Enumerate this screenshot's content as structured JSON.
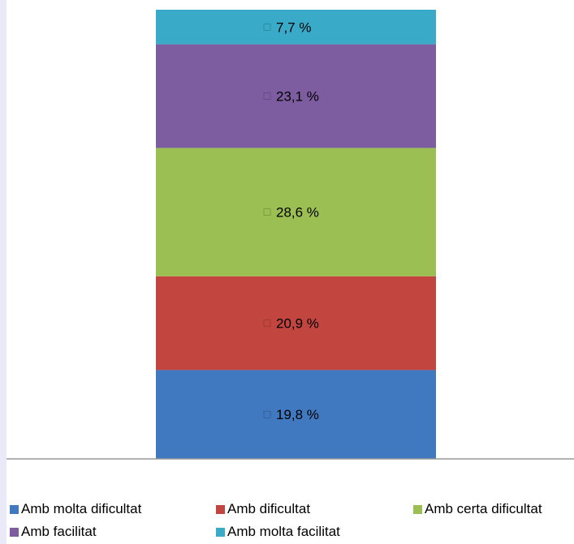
{
  "chart_data": {
    "type": "bar",
    "stacked": true,
    "categories": [
      ""
    ],
    "series": [
      {
        "name": "Amb molta dificultat",
        "values": [
          19.8
        ],
        "label": "19,8 %",
        "color": "#4079c0"
      },
      {
        "name": "Amb dificultat",
        "values": [
          20.9
        ],
        "label": "20,9 %",
        "color": "#c2463f"
      },
      {
        "name": "Amb certa dificultat",
        "values": [
          28.6
        ],
        "label": "28,6 %",
        "color": "#9bbf52"
      },
      {
        "name": "Amb facilitat",
        "values": [
          23.1
        ],
        "label": "23,1 %",
        "color": "#7d5da0"
      },
      {
        "name": "Amb molta facilitat",
        "values": [
          7.7
        ],
        "label": "7,7 %",
        "color": "#39aac8"
      }
    ],
    "ylim": [
      0,
      100
    ],
    "grid": false,
    "legend": "bottom"
  }
}
